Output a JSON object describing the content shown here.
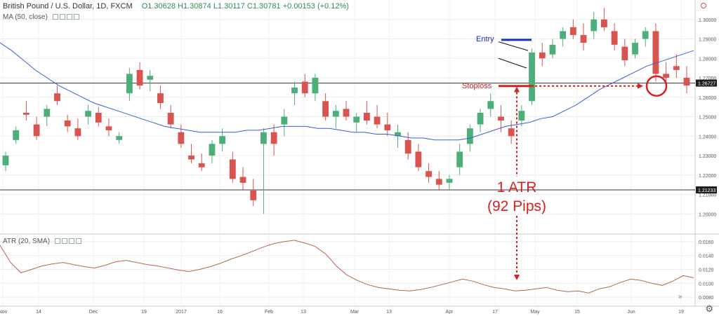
{
  "header": {
    "symbol": "British Pound / U.S. Dollar, 1D, FXCM",
    "ohlc": "O1.30628  H1.30874  L1.30117  C1.30781  +0.00153 (+0.12%)"
  },
  "indicators": {
    "ma_label": "MA (50, close)",
    "atr_label": "ATR (20, SMA)"
  },
  "colors": {
    "up": "#4caf7a",
    "down": "#d9534f",
    "ma": "#3b5bdb",
    "atr": "#b5654a",
    "annotation_red": "#d62121",
    "entry_blue": "#1a2fc4"
  },
  "annotations": {
    "entry": "Entry",
    "stoploss": "Stoploss",
    "atr_line1": "1 ATR",
    "atr_line2": "(92 Pips)"
  },
  "chart_data": [
    {
      "type": "candlestick",
      "title": "British Pound / U.S. Dollar, 1D, FXCM",
      "ylim": [
        1.19,
        1.31
      ],
      "y_ticks": [
        "1.31000",
        "1.30000",
        "1.29000",
        "1.28000",
        "1.27000",
        "1.26000",
        "1.25000",
        "1.24000",
        "1.23000",
        "1.22000",
        "1.21000",
        "1.20000"
      ],
      "x_ticks": [
        "Nov",
        "14",
        "Dec",
        "19",
        "2017",
        "16",
        "Feb",
        "13",
        "Mar",
        "13",
        "Apr",
        "17",
        "May",
        "15",
        "Jun",
        "19"
      ],
      "price_labels": [
        "1.26727",
        "1.21233"
      ],
      "horizontal_lines": [
        1.26727,
        1.21233
      ],
      "ma_period": 50,
      "ma": [
        1.288,
        1.284,
        1.279,
        1.274,
        1.27,
        1.266,
        1.263,
        1.26,
        1.257,
        1.255,
        1.253,
        1.251,
        1.249,
        1.247,
        1.245,
        1.244,
        1.243,
        1.242,
        1.242,
        1.242,
        1.242,
        1.243,
        1.243,
        1.244,
        1.245,
        1.245,
        1.245,
        1.244,
        1.244,
        1.243,
        1.242,
        1.242,
        1.241,
        1.241,
        1.24,
        1.239,
        1.239,
        1.238,
        1.238,
        1.238,
        1.239,
        1.241,
        1.243,
        1.245,
        1.246,
        1.247,
        1.249,
        1.25,
        1.253,
        1.256,
        1.26,
        1.264,
        1.267,
        1.27,
        1.273,
        1.276,
        1.278,
        1.28,
        1.282,
        1.284
      ],
      "candles": [
        [
          1.225,
          1.232,
          1.222,
          1.23
        ],
        [
          1.238,
          1.245,
          1.236,
          1.243
        ],
        [
          1.252,
          1.258,
          1.248,
          1.251
        ],
        [
          1.246,
          1.25,
          1.238,
          1.24
        ],
        [
          1.25,
          1.256,
          1.245,
          1.254
        ],
        [
          1.262,
          1.266,
          1.256,
          1.258
        ],
        [
          1.248,
          1.251,
          1.242,
          1.245
        ],
        [
          1.244,
          1.249,
          1.238,
          1.24
        ],
        [
          1.25,
          1.256,
          1.246,
          1.253
        ],
        [
          1.252,
          1.255,
          1.245,
          1.247
        ],
        [
          1.245,
          1.249,
          1.24,
          1.243
        ],
        [
          1.238,
          1.242,
          1.236,
          1.24
        ],
        [
          1.262,
          1.275,
          1.258,
          1.272
        ],
        [
          1.274,
          1.278,
          1.264,
          1.266
        ],
        [
          1.269,
          1.274,
          1.263,
          1.271
        ],
        [
          1.262,
          1.266,
          1.254,
          1.257
        ],
        [
          1.252,
          1.256,
          1.244,
          1.246
        ],
        [
          1.242,
          1.246,
          1.234,
          1.236
        ],
        [
          1.23,
          1.236,
          1.226,
          1.228
        ],
        [
          1.226,
          1.231,
          1.222,
          1.224
        ],
        [
          1.23,
          1.238,
          1.226,
          1.236
        ],
        [
          1.236,
          1.244,
          1.232,
          1.24
        ],
        [
          1.228,
          1.232,
          1.216,
          1.218
        ],
        [
          1.219,
          1.224,
          1.212,
          1.216
        ],
        [
          1.212,
          1.218,
          1.204,
          1.207
        ],
        [
          1.236,
          1.244,
          1.2,
          1.242
        ],
        [
          1.242,
          1.246,
          1.23,
          1.236
        ],
        [
          1.246,
          1.254,
          1.24,
          1.25
        ],
        [
          1.262,
          1.268,
          1.256,
          1.265
        ],
        [
          1.268,
          1.272,
          1.26,
          1.262
        ],
        [
          1.262,
          1.272,
          1.258,
          1.27
        ],
        [
          1.258,
          1.262,
          1.248,
          1.25
        ],
        [
          1.25,
          1.256,
          1.244,
          1.253
        ],
        [
          1.254,
          1.258,
          1.248,
          1.25
        ],
        [
          1.247,
          1.252,
          1.242,
          1.25
        ],
        [
          1.252,
          1.258,
          1.246,
          1.248
        ],
        [
          1.25,
          1.256,
          1.244,
          1.246
        ],
        [
          1.246,
          1.252,
          1.24,
          1.243
        ],
        [
          1.24,
          1.246,
          1.234,
          1.242
        ],
        [
          1.238,
          1.242,
          1.228,
          1.231
        ],
        [
          1.232,
          1.236,
          1.222,
          1.224
        ],
        [
          1.222,
          1.226,
          1.216,
          1.219
        ],
        [
          1.218,
          1.222,
          1.212,
          1.215
        ],
        [
          1.216,
          1.22,
          1.212,
          1.218
        ],
        [
          1.224,
          1.236,
          1.22,
          1.232
        ],
        [
          1.236,
          1.246,
          1.232,
          1.244
        ],
        [
          1.246,
          1.254,
          1.242,
          1.252
        ],
        [
          1.254,
          1.262,
          1.25,
          1.258
        ],
        [
          1.25,
          1.256,
          1.242,
          1.248
        ],
        [
          1.244,
          1.248,
          1.236,
          1.24
        ],
        [
          1.248,
          1.256,
          1.245,
          1.253
        ],
        [
          1.258,
          1.285,
          1.256,
          1.283
        ],
        [
          1.283,
          1.288,
          1.276,
          1.28
        ],
        [
          1.282,
          1.29,
          1.28,
          1.287
        ],
        [
          1.29,
          1.296,
          1.286,
          1.294
        ],
        [
          1.296,
          1.3,
          1.29,
          1.292
        ],
        [
          1.292,
          1.298,
          1.284,
          1.288
        ],
        [
          1.294,
          1.304,
          1.29,
          1.3
        ],
        [
          1.3,
          1.306,
          1.294,
          1.296
        ],
        [
          1.294,
          1.298,
          1.284,
          1.287
        ],
        [
          1.286,
          1.29,
          1.276,
          1.279
        ],
        [
          1.282,
          1.29,
          1.28,
          1.288
        ],
        [
          1.29,
          1.296,
          1.286,
          1.294
        ],
        [
          1.294,
          1.298,
          1.268,
          1.272
        ],
        [
          1.272,
          1.278,
          1.266,
          1.27
        ],
        [
          1.276,
          1.282,
          1.27,
          1.274
        ],
        [
          1.27,
          1.276,
          1.262,
          1.266
        ]
      ]
    },
    {
      "type": "line",
      "title": "ATR (20, SMA)",
      "ylim": [
        0.007,
        0.017
      ],
      "y_ticks": [
        "0.0160",
        "0.0140",
        "0.0120",
        "0.0100",
        "0.0080"
      ],
      "series": [
        {
          "name": "ATR (20, SMA)",
          "values": [
            0.0155,
            0.013,
            0.0115,
            0.012,
            0.0125,
            0.0128,
            0.013,
            0.0127,
            0.0124,
            0.0122,
            0.0126,
            0.0131,
            0.0133,
            0.013,
            0.0127,
            0.0125,
            0.0122,
            0.0119,
            0.0117,
            0.012,
            0.0124,
            0.0129,
            0.0135,
            0.014,
            0.0146,
            0.0152,
            0.0157,
            0.016,
            0.0162,
            0.0158,
            0.0153,
            0.0142,
            0.0125,
            0.0112,
            0.0104,
            0.0098,
            0.0094,
            0.0092,
            0.009,
            0.0089,
            0.0091,
            0.0094,
            0.0098,
            0.0102,
            0.0106,
            0.0103,
            0.0098,
            0.0094,
            0.0092,
            0.0089,
            0.009,
            0.0092,
            0.0094,
            0.009,
            0.0088,
            0.0089,
            0.0086,
            0.0092,
            0.0095,
            0.0101,
            0.0106,
            0.0104,
            0.01,
            0.0097,
            0.0103,
            0.0111,
            0.0108
          ]
        }
      ]
    }
  ]
}
